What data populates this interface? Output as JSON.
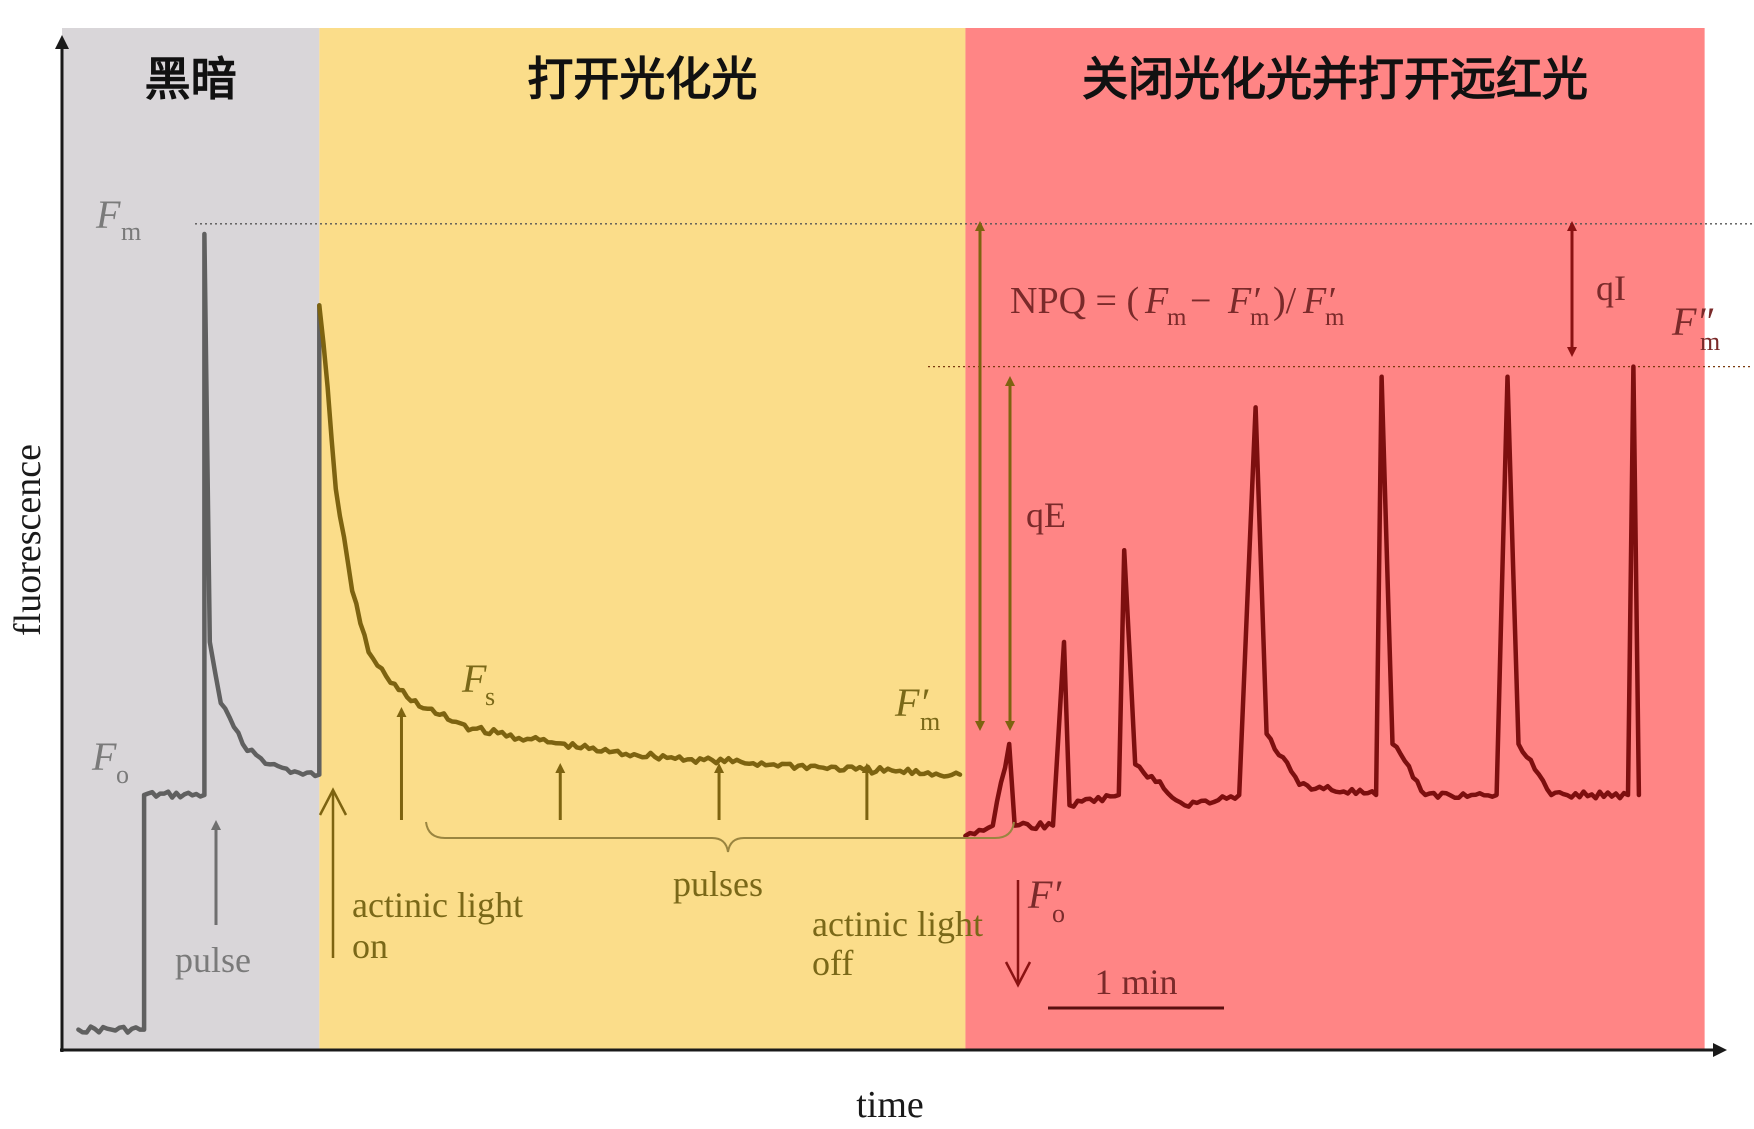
{
  "chart_data": {
    "type": "line",
    "title": "",
    "xlabel": "time",
    "ylabel": "fluorescence",
    "xlim": [
      0,
      30.5
    ],
    "ylim": [
      0,
      100
    ],
    "zones": [
      {
        "name": "dark",
        "label": "黑暗",
        "x_range": [
          0,
          4.7
        ],
        "color": "#d9d6d9"
      },
      {
        "name": "actinic",
        "label": "打开光化光",
        "x_range": [
          4.7,
          16.5
        ],
        "color": "#fbdd8a"
      },
      {
        "name": "far-red",
        "label": "关闭光化光并打开远红光",
        "x_range": [
          16.5,
          30
        ],
        "color": "#ff8585"
      }
    ],
    "reference_levels": [
      {
        "name": "Fm",
        "y": 81
      },
      {
        "name": "Fm''",
        "y": 67
      }
    ],
    "series": [
      {
        "name": "dark phase trace",
        "color": "#606060",
        "points": [
          [
            0.3,
            2
          ],
          [
            1.5,
            2
          ],
          [
            1.5,
            25
          ],
          [
            2.6,
            25
          ],
          [
            2.6,
            80
          ],
          [
            2.7,
            40
          ],
          [
            2.9,
            34
          ],
          [
            3.3,
            30
          ],
          [
            3.8,
            28
          ],
          [
            4.4,
            27
          ],
          [
            4.7,
            27
          ],
          [
            4.7,
            73
          ]
        ]
      },
      {
        "name": "actinic phase trace",
        "color": "#7d6310",
        "points": [
          [
            4.7,
            73
          ],
          [
            4.85,
            65
          ],
          [
            5.0,
            55
          ],
          [
            5.3,
            45
          ],
          [
            5.6,
            39
          ],
          [
            6.0,
            36
          ],
          [
            6.6,
            33.5
          ],
          [
            7.5,
            31.5
          ],
          [
            8.5,
            30.5
          ],
          [
            10,
            29.2
          ],
          [
            11.5,
            28.5
          ],
          [
            13,
            28
          ],
          [
            14.5,
            27.5
          ],
          [
            16.4,
            27
          ]
        ]
      },
      {
        "name": "far-red phase trace",
        "color": "#7d0f0f",
        "points": [
          [
            16.5,
            21
          ],
          [
            17,
            22
          ],
          [
            17.3,
            30
          ],
          [
            17.4,
            22
          ],
          [
            18.1,
            22
          ],
          [
            18.3,
            40
          ],
          [
            18.4,
            24
          ],
          [
            19.3,
            25
          ],
          [
            19.4,
            49
          ],
          [
            19.6,
            28
          ],
          [
            20.5,
            24
          ],
          [
            21.5,
            25
          ],
          [
            21.8,
            63
          ],
          [
            22.0,
            31
          ],
          [
            22.6,
            26
          ],
          [
            24,
            25
          ],
          [
            24.1,
            66
          ],
          [
            24.3,
            30
          ],
          [
            24.9,
            25
          ],
          [
            26.2,
            25
          ],
          [
            26.4,
            66
          ],
          [
            26.6,
            30
          ],
          [
            27.2,
            25
          ],
          [
            28.6,
            25
          ],
          [
            28.7,
            67
          ],
          [
            28.8,
            25
          ]
        ]
      }
    ],
    "pulse_arrows_x": [
      2.6,
      6.2,
      9.1,
      12.0,
      14.7,
      16.5
    ],
    "text_labels": {
      "fm": "F",
      "fm_sub": "m",
      "fo": "F",
      "fo_sub": "o",
      "fs": "F",
      "fs_sub": "s",
      "fm_prime": "F′",
      "fm_prime_sub": "m",
      "fo_prime": "F′",
      "fo_prime_sub": "o",
      "fm_dprime": "F″",
      "fm_dprime_sub": "m",
      "pulse": "pulse",
      "pulses": "pulses",
      "actinic_on_1": "actinic light",
      "actinic_on_2": "on",
      "actinic_off_1": "actinic light",
      "actinic_off_2": "off",
      "qe": "qE",
      "qi": "qI",
      "npq_prefix": "NPQ = (",
      "npq_f1": "F",
      "npq_f1_sub": "m",
      "npq_minus": " − ",
      "npq_f2": "F′",
      "npq_f2_sub": "m",
      "npq_mid": ")/ ",
      "npq_f3": "F′",
      "npq_f3_sub": "m",
      "scale": "1 min"
    }
  }
}
